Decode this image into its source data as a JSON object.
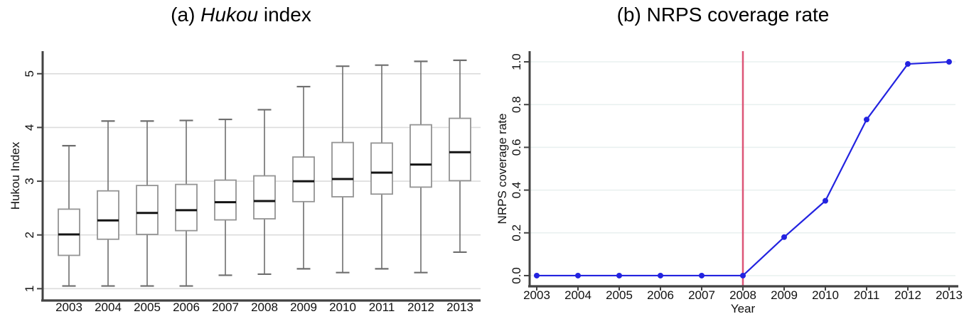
{
  "figure": {
    "background": "#ffffff"
  },
  "chart_data": [
    {
      "type": "box",
      "panel": "a",
      "title": "(a) Hukou index",
      "title_parts": {
        "prefix": "(a) ",
        "italic": "Hukou",
        "suffix": " index"
      },
      "xlabel": "",
      "ylabel": "Hukou Index",
      "categories": [
        "2003",
        "2004",
        "2005",
        "2006",
        "2007",
        "2008",
        "2009",
        "2010",
        "2011",
        "2012",
        "2013"
      ],
      "yticks": [
        1,
        2,
        3,
        4,
        5
      ],
      "ytick_labels": [
        "1",
        "2",
        "3",
        "4",
        "5"
      ],
      "ylim": [
        0.78,
        5.42
      ],
      "grid": true,
      "legend": "none",
      "boxes": [
        {
          "year": "2003",
          "low": 1.05,
          "q1": 1.62,
          "median": 2.01,
          "q3": 2.48,
          "high": 3.66
        },
        {
          "year": "2004",
          "low": 1.05,
          "q1": 1.92,
          "median": 2.27,
          "q3": 2.82,
          "high": 4.12
        },
        {
          "year": "2005",
          "low": 1.05,
          "q1": 2.01,
          "median": 2.41,
          "q3": 2.92,
          "high": 4.12
        },
        {
          "year": "2006",
          "low": 1.05,
          "q1": 2.08,
          "median": 2.46,
          "q3": 2.94,
          "high": 4.13
        },
        {
          "year": "2007",
          "low": 1.25,
          "q1": 2.28,
          "median": 2.61,
          "q3": 3.02,
          "high": 4.15
        },
        {
          "year": "2008",
          "low": 1.27,
          "q1": 2.3,
          "median": 2.63,
          "q3": 3.1,
          "high": 4.33
        },
        {
          "year": "2009",
          "low": 1.37,
          "q1": 2.62,
          "median": 3.0,
          "q3": 3.45,
          "high": 4.76
        },
        {
          "year": "2010",
          "low": 1.3,
          "q1": 2.71,
          "median": 3.04,
          "q3": 3.72,
          "high": 5.14
        },
        {
          "year": "2011",
          "low": 1.37,
          "q1": 2.76,
          "median": 3.16,
          "q3": 3.71,
          "high": 5.16
        },
        {
          "year": "2012",
          "low": 1.3,
          "q1": 2.89,
          "median": 3.31,
          "q3": 4.05,
          "high": 5.23
        },
        {
          "year": "2013",
          "low": 1.68,
          "q1": 3.01,
          "median": 3.54,
          "q3": 4.17,
          "high": 5.25
        }
      ],
      "colors": {
        "box_stroke": "#949494",
        "box_fill": "#ffffff",
        "whisker": "#6e6e6e",
        "median": "#141414",
        "gridline": "#dcdcdc",
        "axis": "#424242",
        "text": "#111111"
      }
    },
    {
      "type": "line",
      "panel": "b",
      "title": "(b) NRPS coverage rate",
      "xlabel": "Year",
      "ylabel": "NRPS coverage rate",
      "x": [
        "2003",
        "2004",
        "2005",
        "2006",
        "2007",
        "2008",
        "2009",
        "2010",
        "2011",
        "2012",
        "2013"
      ],
      "values": [
        0.0,
        0.0,
        0.0,
        0.0,
        0.0,
        0.0,
        0.18,
        0.35,
        0.73,
        0.99,
        1.0
      ],
      "yticks": [
        0.0,
        0.2,
        0.4,
        0.6,
        0.8,
        1.0
      ],
      "ytick_labels": [
        "0.0",
        "0.2",
        "0.4",
        "0.6",
        "0.8",
        "1.0"
      ],
      "ylim": [
        -0.05,
        1.05
      ],
      "grid": true,
      "legend": "none",
      "vline": {
        "x": "2008",
        "color": "#dd5577"
      },
      "colors": {
        "line": "#2323e0",
        "marker": "#2323e0",
        "gridline": "#e8f0ef",
        "axis": "#424242",
        "text": "#111111"
      }
    }
  ]
}
